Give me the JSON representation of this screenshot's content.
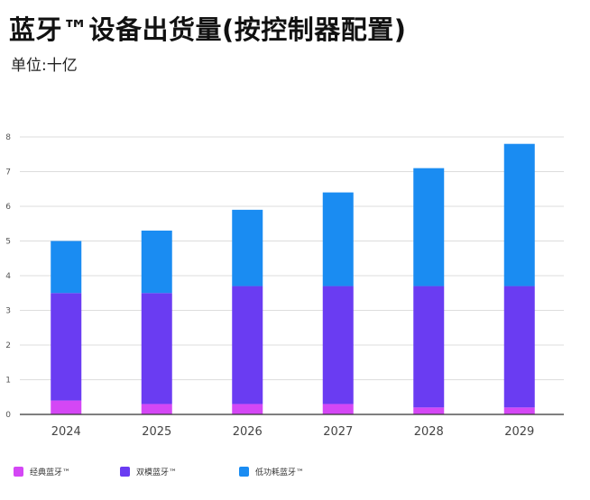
{
  "header": {
    "title": "蓝牙™设备出货量(按控制器配置)",
    "subtitle": "单位:十亿"
  },
  "colors": {
    "classic": "#d447f5",
    "dual_mode": "#6a3cf2",
    "low_energy": "#1a8cf2",
    "grid": "#dddddd",
    "axis": "#333333"
  },
  "chart_data": {
    "type": "bar",
    "stacked": true,
    "title": "蓝牙™设备出货量(按控制器配置)",
    "subtitle": "单位:十亿",
    "xlabel": "",
    "ylabel": "",
    "ylim": [
      0,
      8
    ],
    "yticks": [
      0,
      1,
      2,
      3,
      4,
      5,
      6,
      7,
      8
    ],
    "categories": [
      "2024",
      "2025",
      "2026",
      "2027",
      "2028",
      "2029"
    ],
    "series": [
      {
        "name": "经典蓝牙™",
        "color_key": "classic",
        "values": [
          0.4,
          0.3,
          0.3,
          0.3,
          0.2,
          0.2
        ]
      },
      {
        "name": "双模蓝牙™",
        "color_key": "dual_mode",
        "values": [
          3.1,
          3.2,
          3.4,
          3.4,
          3.5,
          3.5
        ]
      },
      {
        "name": "低功耗蓝牙™",
        "color_key": "low_energy",
        "values": [
          1.5,
          1.8,
          2.2,
          2.7,
          3.4,
          4.1
        ]
      }
    ],
    "grid": true,
    "legend_position": "bottom"
  }
}
